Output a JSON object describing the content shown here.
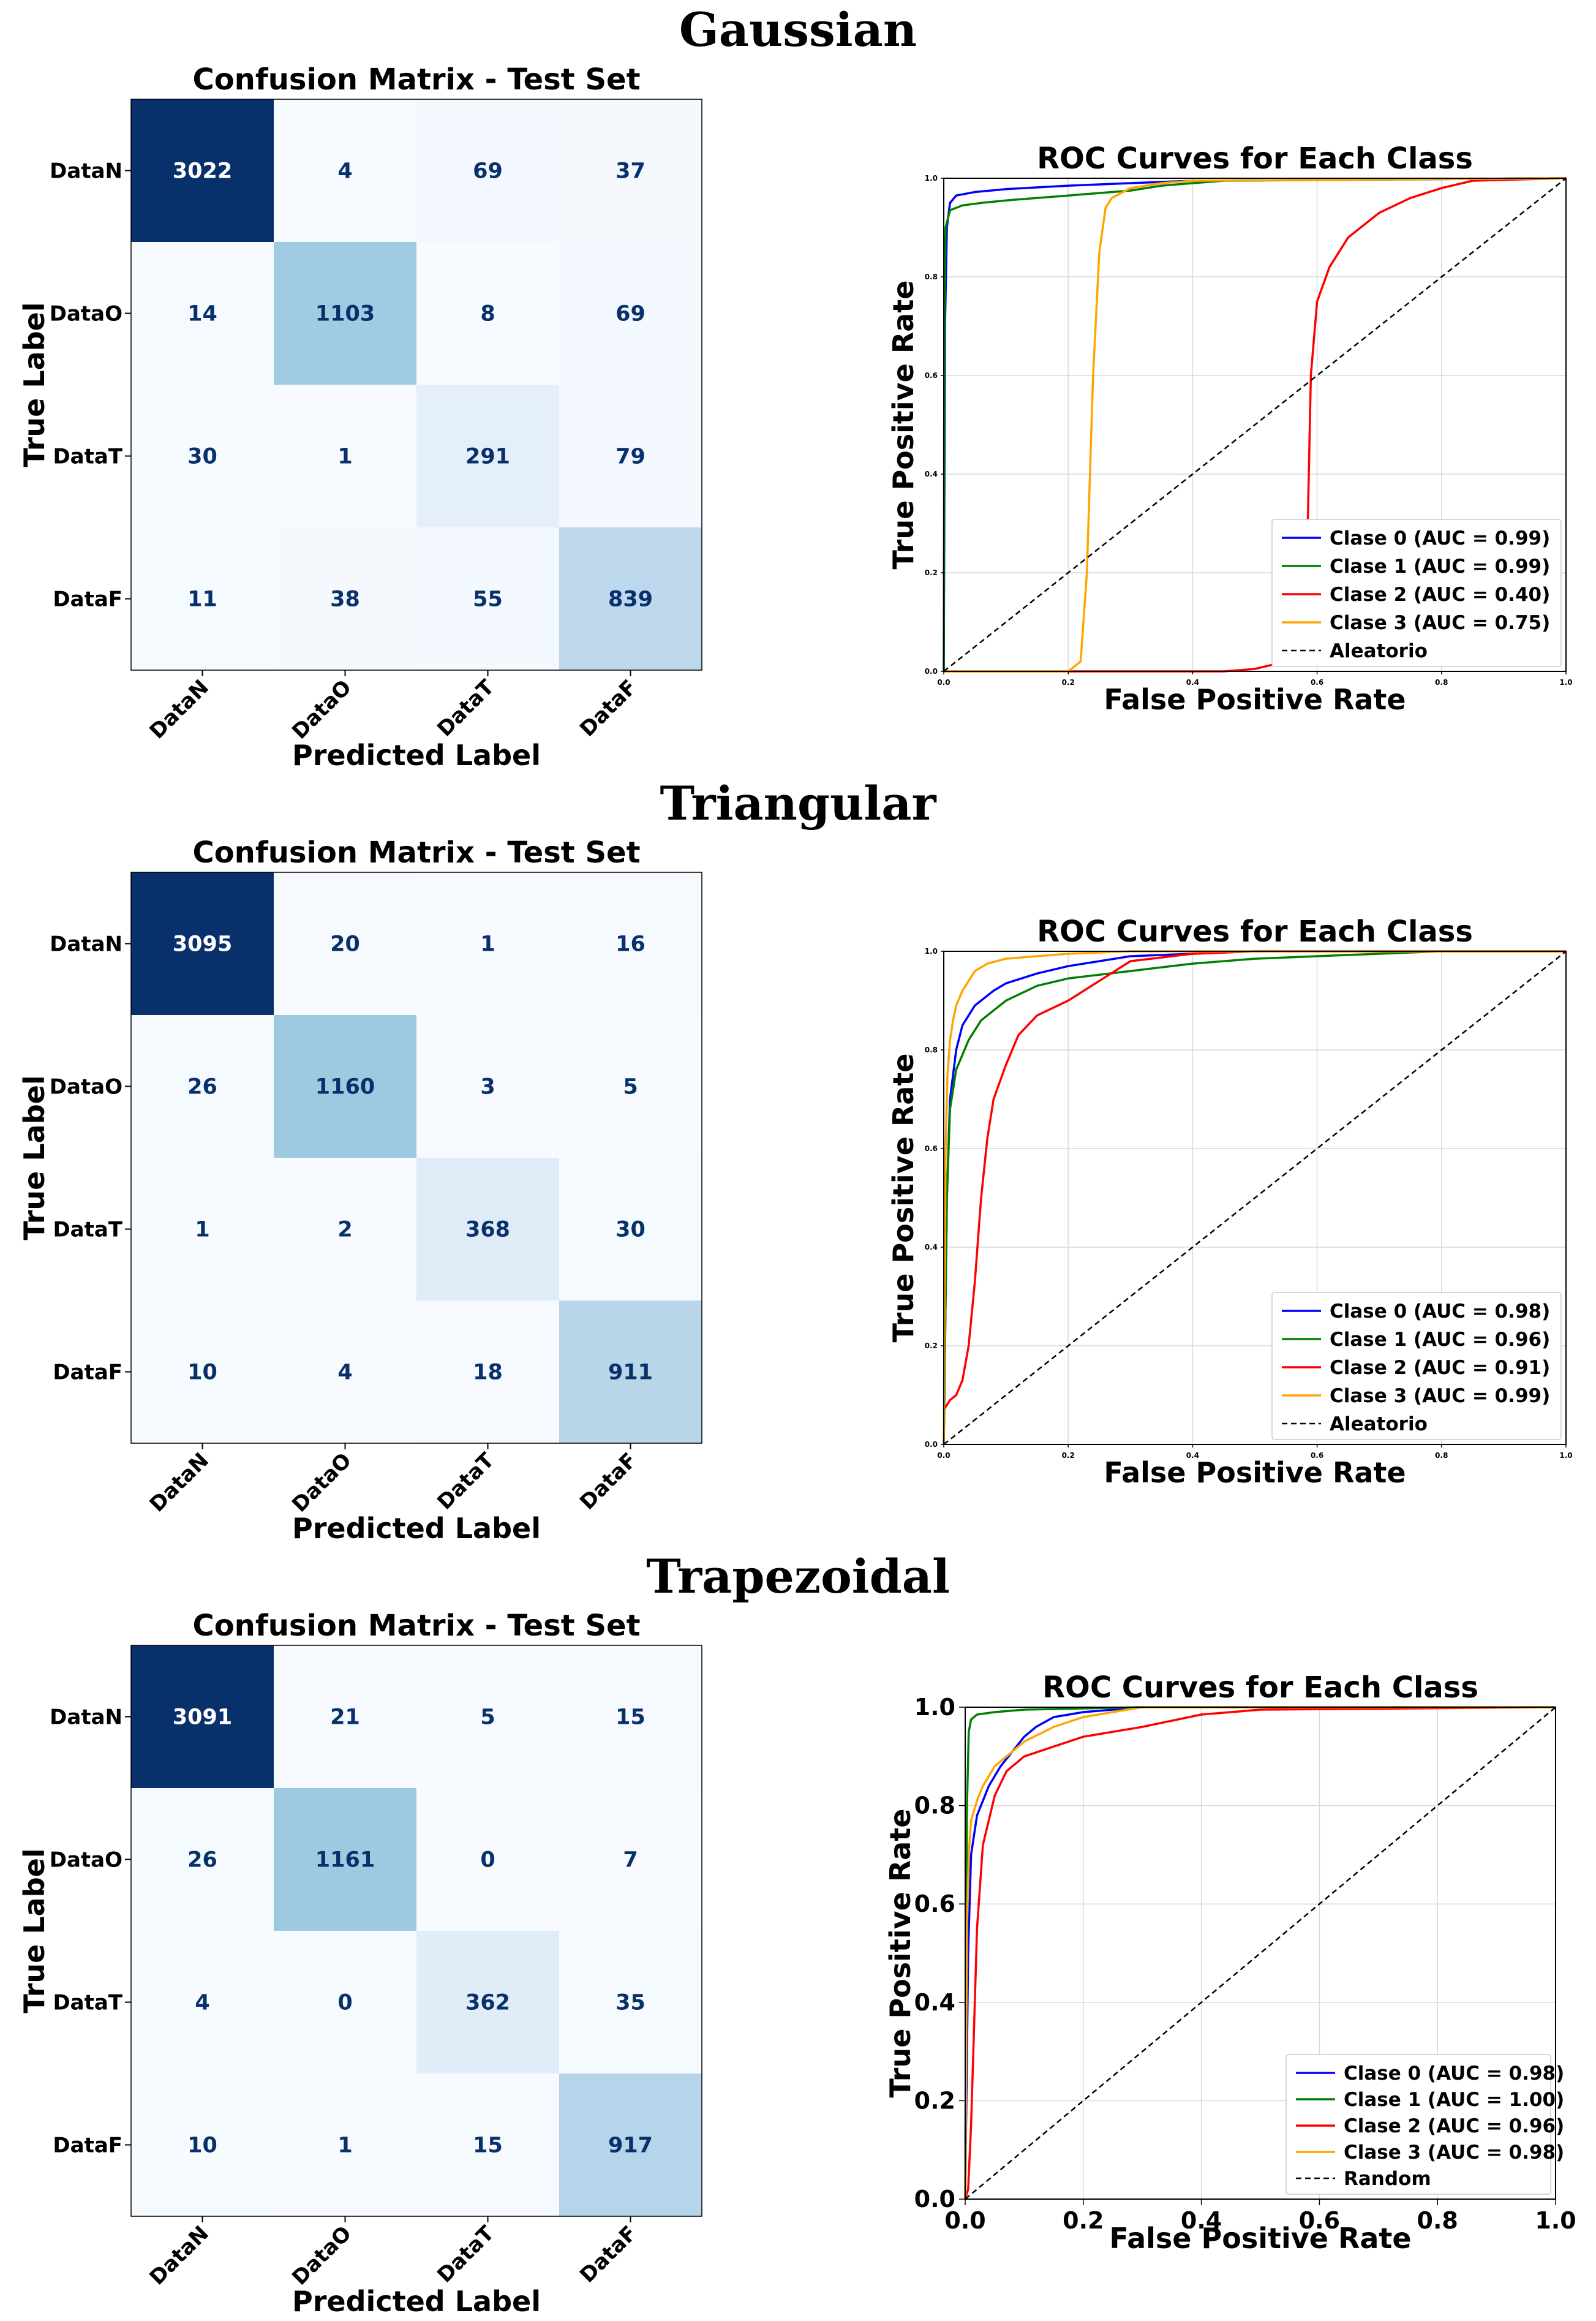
{
  "sections": [
    {
      "title": "Gaussian"
    },
    {
      "title": "Triangular"
    },
    {
      "title": "Trapezoidal"
    }
  ],
  "chart_data": [
    {
      "type": "heatmap",
      "title": "Confusion Matrix - Test Set",
      "xlabel": "Predicted Label",
      "ylabel": "True Label",
      "labels": [
        "DataN",
        "DataO",
        "DataT",
        "DataF"
      ],
      "matrix": [
        [
          3022,
          4,
          69,
          37
        ],
        [
          14,
          1103,
          8,
          69
        ],
        [
          30,
          1,
          291,
          79
        ],
        [
          11,
          38,
          55,
          839
        ]
      ],
      "colormap": "Blues"
    },
    {
      "type": "line",
      "title": "ROC Curves for Each Class",
      "xlabel": "False Positive Rate",
      "ylabel": "True Positive Rate",
      "xlim": [
        0,
        1
      ],
      "ylim": [
        0,
        1
      ],
      "ticks": [
        "0.0",
        "0.2",
        "0.4",
        "0.6",
        "0.8",
        "1.0"
      ],
      "grid": true,
      "legend_position": "lower-right",
      "series": [
        {
          "name": "Clase 0 (AUC = 0.99)",
          "color": "#0000ff",
          "x": [
            0,
            0.002,
            0.005,
            0.01,
            0.02,
            0.05,
            0.1,
            0.2,
            0.3,
            0.4,
            1.0
          ],
          "y": [
            0,
            0.7,
            0.9,
            0.95,
            0.965,
            0.972,
            0.978,
            0.985,
            0.99,
            0.995,
            1.0
          ]
        },
        {
          "name": "Clase 1 (AUC = 0.99)",
          "color": "#008000",
          "x": [
            0,
            0.001,
            0.003,
            0.01,
            0.03,
            0.06,
            0.1,
            0.2,
            0.3,
            0.35,
            0.45,
            1.0
          ],
          "y": [
            0,
            0.7,
            0.9,
            0.935,
            0.945,
            0.95,
            0.955,
            0.965,
            0.975,
            0.985,
            0.995,
            1.0
          ]
        },
        {
          "name": "Clase 2 (AUC = 0.40)",
          "color": "#ff0000",
          "x": [
            0,
            0.45,
            0.5,
            0.55,
            0.58,
            0.585,
            0.59,
            0.6,
            0.62,
            0.65,
            0.7,
            0.75,
            0.8,
            0.85,
            1.0
          ],
          "y": [
            0,
            0.0,
            0.005,
            0.02,
            0.05,
            0.3,
            0.6,
            0.75,
            0.82,
            0.88,
            0.93,
            0.96,
            0.98,
            0.995,
            1.0
          ]
        },
        {
          "name": "Clase 3 (AUC = 0.75)",
          "color": "#ffa500",
          "x": [
            0,
            0.2,
            0.22,
            0.23,
            0.24,
            0.25,
            0.26,
            0.27,
            0.3,
            0.35,
            0.4,
            1.0
          ],
          "y": [
            0,
            0.0,
            0.02,
            0.2,
            0.6,
            0.85,
            0.94,
            0.96,
            0.98,
            0.99,
            0.995,
            1.0
          ]
        },
        {
          "name": "Aleatorio",
          "color": "#000000",
          "dashed": true,
          "x": [
            0,
            1
          ],
          "y": [
            0,
            1
          ]
        }
      ]
    },
    {
      "type": "heatmap",
      "title": "Confusion Matrix - Test Set",
      "xlabel": "Predicted Label",
      "ylabel": "True Label",
      "labels": [
        "DataN",
        "DataO",
        "DataT",
        "DataF"
      ],
      "matrix": [
        [
          3095,
          20,
          1,
          16
        ],
        [
          26,
          1160,
          3,
          5
        ],
        [
          1,
          2,
          368,
          30
        ],
        [
          10,
          4,
          18,
          911
        ]
      ],
      "colormap": "Blues"
    },
    {
      "type": "line",
      "title": "ROC Curves for Each Class",
      "xlabel": "False Positive Rate",
      "ylabel": "True Positive Rate",
      "xlim": [
        0,
        1
      ],
      "ylim": [
        0,
        1
      ],
      "ticks": [
        "0.0",
        "0.2",
        "0.4",
        "0.6",
        "0.8",
        "1.0"
      ],
      "grid": true,
      "legend_position": "lower-right",
      "series": [
        {
          "name": "Clase 0 (AUC = 0.98)",
          "color": "#0000ff",
          "x": [
            0,
            0.005,
            0.01,
            0.02,
            0.03,
            0.05,
            0.08,
            0.1,
            0.15,
            0.2,
            0.25,
            0.3,
            0.4,
            0.5,
            1.0
          ],
          "y": [
            0,
            0.5,
            0.7,
            0.8,
            0.85,
            0.89,
            0.92,
            0.935,
            0.955,
            0.97,
            0.98,
            0.99,
            0.995,
            1.0,
            1.0
          ]
        },
        {
          "name": "Clase 1 (AUC = 0.96)",
          "color": "#008000",
          "x": [
            0,
            0.005,
            0.01,
            0.02,
            0.04,
            0.06,
            0.1,
            0.15,
            0.2,
            0.3,
            0.4,
            0.5,
            0.6,
            0.7,
            0.8,
            1.0
          ],
          "y": [
            0,
            0.5,
            0.68,
            0.76,
            0.82,
            0.86,
            0.9,
            0.93,
            0.945,
            0.96,
            0.975,
            0.985,
            0.99,
            0.995,
            1.0,
            1.0
          ]
        },
        {
          "name": "Clase 2 (AUC = 0.91)",
          "color": "#ff0000",
          "x": [
            0,
            0.01,
            0.02,
            0.03,
            0.04,
            0.05,
            0.06,
            0.07,
            0.08,
            0.1,
            0.12,
            0.15,
            0.2,
            0.25,
            0.3,
            0.4,
            0.5,
            1.0
          ],
          "y": [
            0.07,
            0.09,
            0.1,
            0.13,
            0.2,
            0.33,
            0.5,
            0.62,
            0.7,
            0.77,
            0.83,
            0.87,
            0.9,
            0.94,
            0.98,
            0.995,
            1.0,
            1.0
          ]
        },
        {
          "name": "Clase 3 (AUC = 0.99)",
          "color": "#ffa500",
          "x": [
            0,
            0.003,
            0.006,
            0.01,
            0.015,
            0.02,
            0.03,
            0.04,
            0.05,
            0.07,
            0.1,
            0.2,
            0.3,
            1.0
          ],
          "y": [
            0,
            0.6,
            0.75,
            0.82,
            0.86,
            0.89,
            0.92,
            0.94,
            0.96,
            0.975,
            0.985,
            0.995,
            1.0,
            1.0
          ]
        },
        {
          "name": "Aleatorio",
          "color": "#000000",
          "dashed": true,
          "x": [
            0,
            1
          ],
          "y": [
            0,
            1
          ]
        }
      ]
    },
    {
      "type": "heatmap",
      "title": "Confusion Matrix - Test Set",
      "xlabel": "Predicted Label",
      "ylabel": "True Label",
      "labels": [
        "DataN",
        "DataO",
        "DataT",
        "DataF"
      ],
      "matrix": [
        [
          3091,
          21,
          5,
          15
        ],
        [
          26,
          1161,
          0,
          7
        ],
        [
          4,
          0,
          362,
          35
        ],
        [
          10,
          1,
          15,
          917
        ]
      ],
      "colormap": "Blues"
    },
    {
      "type": "line",
      "title": "ROC Curves for Each Class",
      "xlabel": "False Positive Rate",
      "ylabel": "True Positive Rate",
      "xlim": [
        0,
        1
      ],
      "ylim": [
        0,
        1
      ],
      "ticks": [
        "0.0",
        "0.2",
        "0.4",
        "0.6",
        "0.8",
        "1.0"
      ],
      "grid": true,
      "legend_position": "lower-right",
      "series": [
        {
          "name": "Clase 0 (AUC = 0.98)",
          "color": "#0000ff",
          "x": [
            0,
            0.005,
            0.01,
            0.02,
            0.04,
            0.06,
            0.08,
            0.1,
            0.12,
            0.15,
            0.2,
            0.3,
            1.0
          ],
          "y": [
            0,
            0.5,
            0.7,
            0.78,
            0.84,
            0.88,
            0.91,
            0.94,
            0.96,
            0.98,
            0.99,
            1.0,
            1.0
          ]
        },
        {
          "name": "Clase 1 (AUC = 1.00)",
          "color": "#008000",
          "x": [
            0,
            0.003,
            0.006,
            0.01,
            0.02,
            0.05,
            0.1,
            0.3,
            1.0
          ],
          "y": [
            0,
            0.8,
            0.95,
            0.975,
            0.985,
            0.99,
            0.995,
            1.0,
            1.0
          ]
        },
        {
          "name": "Clase 2 (AUC = 0.96)",
          "color": "#ff0000",
          "x": [
            0,
            0.005,
            0.01,
            0.015,
            0.02,
            0.03,
            0.05,
            0.07,
            0.1,
            0.15,
            0.2,
            0.3,
            0.4,
            0.5,
            1.0
          ],
          "y": [
            0,
            0.02,
            0.15,
            0.35,
            0.55,
            0.72,
            0.82,
            0.87,
            0.9,
            0.92,
            0.94,
            0.96,
            0.985,
            0.995,
            1.0
          ]
        },
        {
          "name": "Clase 3 (AUC = 0.98)",
          "color": "#ffa500",
          "x": [
            0,
            0.003,
            0.006,
            0.01,
            0.02,
            0.03,
            0.05,
            0.08,
            0.1,
            0.15,
            0.2,
            0.25,
            0.3,
            1.0
          ],
          "y": [
            0,
            0.55,
            0.7,
            0.77,
            0.81,
            0.84,
            0.88,
            0.91,
            0.93,
            0.96,
            0.98,
            0.99,
            1.0,
            1.0
          ]
        },
        {
          "name": "Random",
          "color": "#000000",
          "dashed": true,
          "x": [
            0,
            1
          ],
          "y": [
            0,
            1
          ]
        }
      ]
    }
  ]
}
